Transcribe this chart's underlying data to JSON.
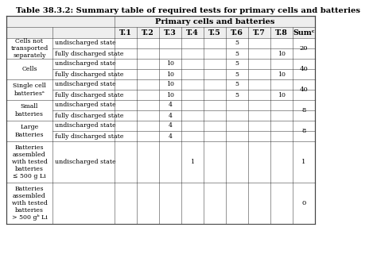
{
  "title": "Table 38.3.2: Summary table of required tests for primary cells and batteries",
  "header_main": "Primary cells and batteries",
  "col_headers": [
    "T.1",
    "T.2",
    "T.3",
    "T.4",
    "T.5",
    "T.6",
    "T.7",
    "T.8",
    "Sumᶜ"
  ],
  "groups": [
    {
      "label": "Cells not\ntransported\nseparately",
      "rows": [
        {
          "state": "undischarged state",
          "T1": "",
          "T2": "",
          "T3": "",
          "T4": "",
          "T5": "",
          "T6": "5",
          "T7": "",
          "T8": ""
        },
        {
          "state": "fully discharged state",
          "T1": "",
          "T2": "",
          "T3": "",
          "T4": "",
          "T5": "",
          "T6": "5",
          "T7": "",
          "T8": "10"
        }
      ],
      "sum": "20",
      "tall": false
    },
    {
      "label": "Cells",
      "rows": [
        {
          "state": "undischarged state",
          "T1": "",
          "T2": "",
          "T3": "10",
          "T4": "",
          "T5": "",
          "T6": "5",
          "T7": "",
          "T8": ""
        },
        {
          "state": "fully discharged state",
          "T1": "",
          "T2": "",
          "T3": "10",
          "T4": "",
          "T5": "",
          "T6": "5",
          "T7": "",
          "T8": "10"
        }
      ],
      "sum": "40",
      "tall": false
    },
    {
      "label": "Single cell\nbatteriesᵃ",
      "rows": [
        {
          "state": "undischarged state",
          "T1": "",
          "T2": "",
          "T3": "10",
          "T4": "",
          "T5": "",
          "T6": "5",
          "T7": "",
          "T8": ""
        },
        {
          "state": "fully discharged state",
          "T1": "",
          "T2": "",
          "T3": "10",
          "T4": "",
          "T5": "",
          "T6": "5",
          "T7": "",
          "T8": "10"
        }
      ],
      "sum": "40",
      "tall": false
    },
    {
      "label": "Small\nbatteries",
      "rows": [
        {
          "state": "undischarged state",
          "T1": "",
          "T2": "",
          "T3": "4",
          "T4": "",
          "T5": "",
          "T6": "",
          "T7": "",
          "T8": ""
        },
        {
          "state": "fully discharged state",
          "T1": "",
          "T2": "",
          "T3": "4",
          "T4": "",
          "T5": "",
          "T6": "",
          "T7": "",
          "T8": ""
        }
      ],
      "sum": "8",
      "tall": false
    },
    {
      "label": "Large\nBatteries",
      "rows": [
        {
          "state": "undischarged state",
          "T1": "",
          "T2": "",
          "T3": "4",
          "T4": "",
          "T5": "",
          "T6": "",
          "T7": "",
          "T8": ""
        },
        {
          "state": "fully discharged state",
          "T1": "",
          "T2": "",
          "T3": "4",
          "T4": "",
          "T5": "",
          "T6": "",
          "T7": "",
          "T8": ""
        }
      ],
      "sum": "8",
      "tall": false
    },
    {
      "label": "Batteries\nassembled\nwith tested\nbatteries\n≤ 500 g Li",
      "rows": [
        {
          "state": "undischarged state",
          "T1": "",
          "T2": "",
          "T3": "",
          "T4": "1",
          "T5": "",
          "T6": "",
          "T7": "",
          "T8": ""
        }
      ],
      "sum": "1",
      "tall": true
    },
    {
      "label": "Batteries\nassembled\nwith tested\nbatteries\n> 500 gᵇ Li",
      "rows": [],
      "sum": "0",
      "tall": true
    }
  ],
  "line_color": "#444444",
  "bg_color": "#ffffff",
  "header_bg": "#eeeeee",
  "title_fontsize": 7.2,
  "header_fontsize": 6.8,
  "cell_fontsize": 6.0,
  "small_fontsize": 5.6
}
